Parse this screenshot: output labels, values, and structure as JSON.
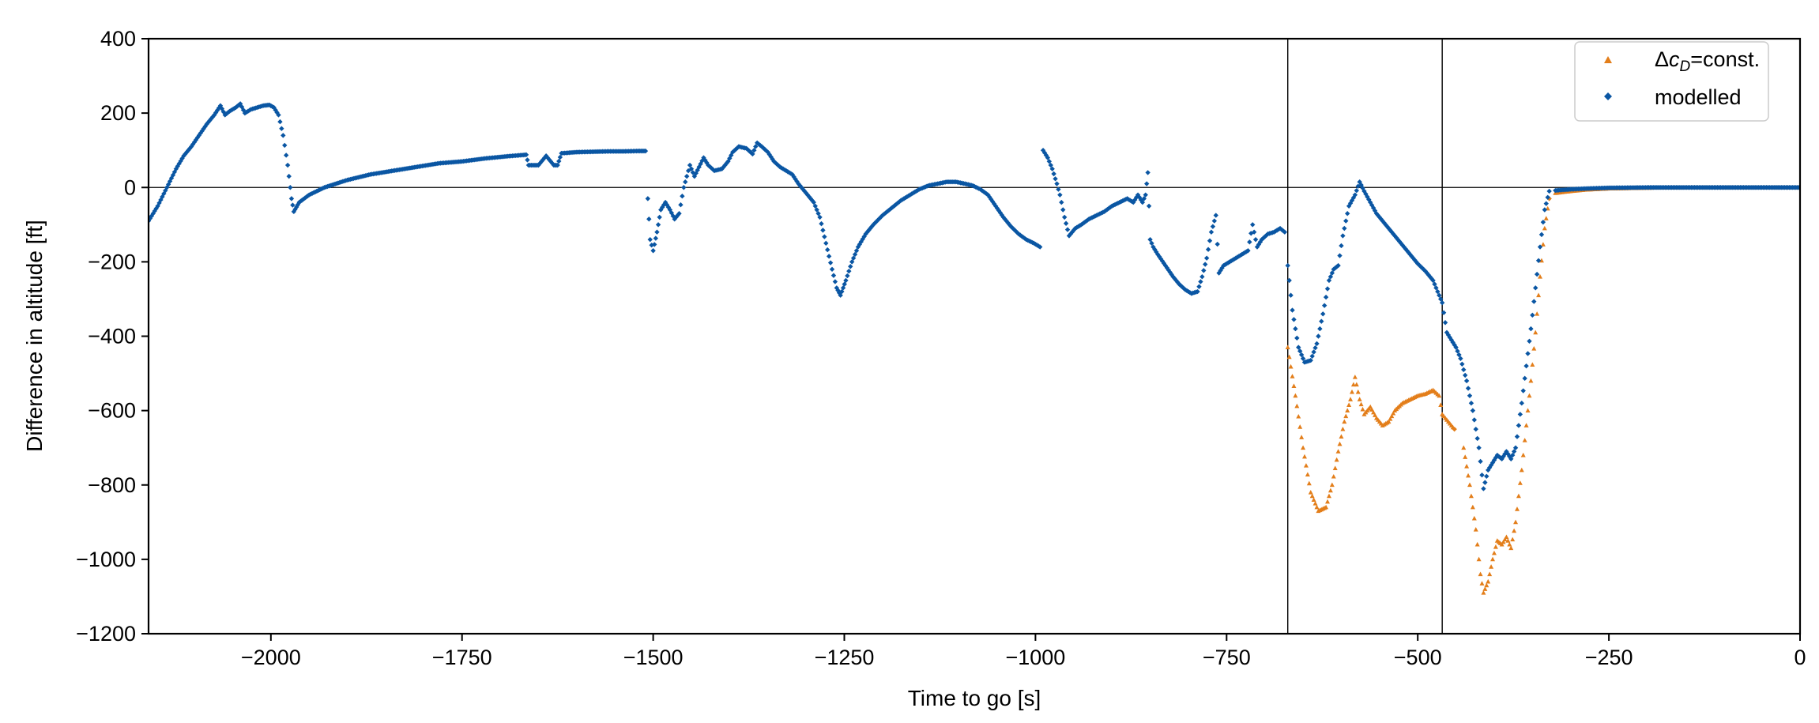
{
  "chart_data": {
    "type": "scatter",
    "xlabel": "Time to go [s]",
    "ylabel": "Difference in altitude [ft]",
    "xlim": [
      -2160,
      0
    ],
    "ylim": [
      -1200,
      400
    ],
    "xticks": [
      -2000,
      -1750,
      -1500,
      -1250,
      -1000,
      -750,
      -500,
      -250,
      0
    ],
    "yticks": [
      400,
      200,
      0,
      -200,
      -400,
      -600,
      -800,
      -1000,
      -1200
    ],
    "xtick_labels": [
      "−2000",
      "−1750",
      "−1500",
      "−1250",
      "−1000",
      "−750",
      "−500",
      "−250",
      "0"
    ],
    "ytick_labels": [
      "400",
      "200",
      "0",
      "−200",
      "−400",
      "−600",
      "−800",
      "−1000",
      "−1200"
    ],
    "reference_lines": {
      "horizontal_y": 0,
      "vertical_x": [
        -670,
        -468
      ]
    },
    "grid": false,
    "legend": {
      "position": "top-right",
      "entries": [
        {
          "label_prefix": "Δ",
          "label_math": "c",
          "label_sub": "D",
          "label_suffix": "=const.",
          "series_index": 0
        },
        {
          "label": "modelled",
          "series_index": 1
        }
      ]
    },
    "series": [
      {
        "name": "ΔcD=const.",
        "color": "#e37e1a",
        "marker": "triangle",
        "segments": [
          [
            [
              -670,
              -430
            ],
            [
              -660,
              -560
            ],
            [
              -650,
              -700
            ],
            [
              -640,
              -820
            ],
            [
              -630,
              -870
            ],
            [
              -620,
              -860
            ],
            [
              -612,
              -800
            ],
            [
              -604,
              -710
            ],
            [
              -596,
              -630
            ],
            [
              -588,
              -570
            ],
            [
              -582,
              -510
            ],
            [
              -576,
              -570
            ],
            [
              -570,
              -610
            ],
            [
              -562,
              -590
            ],
            [
              -554,
              -620
            ],
            [
              -546,
              -640
            ],
            [
              -538,
              -630
            ],
            [
              -530,
              -600
            ],
            [
              -520,
              -580
            ],
            [
              -510,
              -570
            ],
            [
              -500,
              -560
            ],
            [
              -490,
              -555
            ],
            [
              -480,
              -545
            ],
            [
              -472,
              -560
            ],
            [
              -468,
              -610
            ],
            [
              -460,
              -630
            ],
            [
              -452,
              -650
            ]
          ],
          [
            [
              -440,
              -700
            ],
            [
              -432,
              -800
            ],
            [
              -424,
              -920
            ],
            [
              -418,
              -1040
            ],
            [
              -414,
              -1090
            ],
            [
              -408,
              -1060
            ],
            [
              -402,
              -1000
            ],
            [
              -396,
              -950
            ],
            [
              -390,
              -960
            ],
            [
              -384,
              -940
            ],
            [
              -378,
              -970
            ],
            [
              -372,
              -900
            ],
            [
              -364,
              -760
            ],
            [
              -358,
              -640
            ],
            [
              -352,
              -520
            ],
            [
              -346,
              -390
            ],
            [
              -340,
              -240
            ],
            [
              -334,
              -110
            ],
            [
              -328,
              -30
            ]
          ],
          [
            [
              -320,
              -15
            ],
            [
              -300,
              -10
            ],
            [
              -280,
              -6
            ],
            [
              -250,
              -3
            ],
            [
              -200,
              -1
            ],
            [
              -150,
              0
            ],
            [
              -100,
              0
            ],
            [
              -50,
              0
            ],
            [
              0,
              0
            ]
          ]
        ]
      },
      {
        "name": "modelled",
        "color": "#0a56a3",
        "marker": "diamond",
        "segments": [
          [
            [
              -2160,
              -90
            ],
            [
              -2148,
              -50
            ],
            [
              -2136,
              0
            ],
            [
              -2124,
              50
            ],
            [
              -2114,
              85
            ],
            [
              -2104,
              110
            ],
            [
              -2094,
              140
            ],
            [
              -2084,
              170
            ],
            [
              -2074,
              195
            ],
            [
              -2066,
              220
            ],
            [
              -2060,
              195
            ],
            [
              -2054,
              205
            ],
            [
              -2046,
              215
            ],
            [
              -2040,
              225
            ],
            [
              -2034,
              200
            ],
            [
              -2026,
              210
            ],
            [
              -2018,
              215
            ],
            [
              -2010,
              220
            ],
            [
              -2002,
              222
            ],
            [
              -1996,
              215
            ],
            [
              -1990,
              195
            ],
            [
              -1984,
              140
            ],
            [
              -1978,
              60
            ],
            [
              -1973,
              -30
            ],
            [
              -1970,
              -65
            ],
            [
              -1963,
              -40
            ],
            [
              -1950,
              -20
            ],
            [
              -1930,
              0
            ],
            [
              -1900,
              20
            ],
            [
              -1870,
              35
            ],
            [
              -1840,
              45
            ],
            [
              -1810,
              55
            ],
            [
              -1780,
              65
            ],
            [
              -1750,
              70
            ],
            [
              -1720,
              78
            ],
            [
              -1690,
              84
            ],
            [
              -1666,
              88
            ],
            [
              -1663,
              60
            ],
            [
              -1650,
              60
            ],
            [
              -1640,
              85
            ],
            [
              -1630,
              60
            ],
            [
              -1625,
              60
            ],
            [
              -1620,
              92
            ],
            [
              -1600,
              95
            ],
            [
              -1580,
              96
            ],
            [
              -1560,
              97
            ],
            [
              -1540,
              97
            ],
            [
              -1520,
              98
            ],
            [
              -1510,
              98
            ]
          ],
          [
            [
              -1507,
              -30
            ],
            [
              -1504,
              -140
            ],
            [
              -1500,
              -170
            ],
            [
              -1495,
              -120
            ],
            [
              -1490,
              -60
            ],
            [
              -1484,
              -40
            ],
            [
              -1478,
              -60
            ],
            [
              -1472,
              -85
            ],
            [
              -1466,
              -70
            ],
            [
              -1460,
              0
            ],
            [
              -1452,
              60
            ],
            [
              -1446,
              30
            ],
            [
              -1440,
              55
            ],
            [
              -1434,
              80
            ],
            [
              -1428,
              60
            ],
            [
              -1420,
              45
            ],
            [
              -1410,
              50
            ],
            [
              -1402,
              70
            ],
            [
              -1396,
              95
            ],
            [
              -1388,
              110
            ],
            [
              -1378,
              105
            ],
            [
              -1370,
              90
            ],
            [
              -1364,
              120
            ],
            [
              -1358,
              110
            ],
            [
              -1350,
              95
            ],
            [
              -1342,
              70
            ],
            [
              -1334,
              55
            ],
            [
              -1326,
              45
            ],
            [
              -1318,
              35
            ],
            [
              -1310,
              10
            ],
            [
              -1300,
              -15
            ],
            [
              -1290,
              -40
            ],
            [
              -1282,
              -80
            ],
            [
              -1274,
              -150
            ],
            [
              -1266,
              -220
            ],
            [
              -1260,
              -270
            ],
            [
              -1255,
              -290
            ],
            [
              -1248,
              -250
            ],
            [
              -1240,
              -200
            ],
            [
              -1232,
              -160
            ],
            [
              -1222,
              -125
            ],
            [
              -1212,
              -100
            ],
            [
              -1200,
              -75
            ],
            [
              -1188,
              -55
            ],
            [
              -1176,
              -35
            ],
            [
              -1164,
              -20
            ],
            [
              -1152,
              -5
            ],
            [
              -1140,
              5
            ],
            [
              -1128,
              10
            ],
            [
              -1116,
              15
            ],
            [
              -1104,
              15
            ],
            [
              -1092,
              10
            ],
            [
              -1082,
              5
            ],
            [
              -1072,
              -5
            ],
            [
              -1062,
              -20
            ],
            [
              -1052,
              -50
            ],
            [
              -1042,
              -80
            ],
            [
              -1032,
              -105
            ],
            [
              -1022,
              -125
            ],
            [
              -1012,
              -140
            ],
            [
              -1002,
              -150
            ],
            [
              -994,
              -160
            ]
          ],
          [
            [
              -990,
              100
            ],
            [
              -984,
              80
            ],
            [
              -978,
              50
            ],
            [
              -972,
              10
            ],
            [
              -968,
              -20
            ],
            [
              -962,
              -80
            ],
            [
              -956,
              -130
            ],
            [
              -948,
              -110
            ],
            [
              -940,
              -100
            ],
            [
              -930,
              -85
            ],
            [
              -920,
              -75
            ],
            [
              -910,
              -65
            ],
            [
              -900,
              -50
            ],
            [
              -890,
              -40
            ],
            [
              -880,
              -30
            ],
            [
              -872,
              -40
            ],
            [
              -866,
              -20
            ],
            [
              -860,
              -40
            ],
            [
              -856,
              -20
            ],
            [
              -853,
              40
            ],
            [
              -850,
              -140
            ],
            [
              -846,
              -160
            ],
            [
              -840,
              -180
            ],
            [
              -830,
              -210
            ],
            [
              -820,
              -240
            ],
            [
              -812,
              -260
            ],
            [
              -804,
              -275
            ],
            [
              -796,
              -285
            ],
            [
              -788,
              -280
            ],
            [
              -782,
              -240
            ],
            [
              -776,
              -190
            ],
            [
              -770,
              -120
            ],
            [
              -764,
              -75
            ],
            [
              -760,
              -230
            ],
            [
              -754,
              -210
            ],
            [
              -746,
              -200
            ],
            [
              -738,
              -190
            ],
            [
              -730,
              -180
            ],
            [
              -722,
              -170
            ],
            [
              -716,
              -100
            ],
            [
              -710,
              -160
            ],
            [
              -704,
              -140
            ],
            [
              -696,
              -125
            ],
            [
              -688,
              -120
            ],
            [
              -680,
              -110
            ],
            [
              -674,
              -120
            ]
          ],
          [
            [
              -670,
              -210
            ],
            [
              -664,
              -330
            ],
            [
              -656,
              -430
            ],
            [
              -648,
              -470
            ],
            [
              -640,
              -465
            ],
            [
              -632,
              -420
            ],
            [
              -624,
              -340
            ],
            [
              -616,
              -250
            ],
            [
              -610,
              -220
            ],
            [
              -604,
              -210
            ],
            [
              -598,
              -130
            ],
            [
              -590,
              -50
            ],
            [
              -582,
              -20
            ],
            [
              -576,
              15
            ],
            [
              -570,
              -10
            ],
            [
              -562,
              -40
            ],
            [
              -554,
              -70
            ],
            [
              -546,
              -90
            ],
            [
              -538,
              -110
            ],
            [
              -530,
              -130
            ],
            [
              -520,
              -155
            ],
            [
              -510,
              -180
            ],
            [
              -500,
              -205
            ],
            [
              -490,
              -225
            ],
            [
              -480,
              -250
            ],
            [
              -472,
              -290
            ],
            [
              -468,
              -310
            ],
            [
              -462,
              -390
            ],
            [
              -456,
              -410
            ],
            [
              -450,
              -430
            ],
            [
              -444,
              -460
            ],
            [
              -436,
              -520
            ],
            [
              -428,
              -600
            ],
            [
              -420,
              -700
            ],
            [
              -414,
              -810
            ],
            [
              -408,
              -760
            ],
            [
              -402,
              -740
            ],
            [
              -396,
              -720
            ],
            [
              -390,
              -730
            ],
            [
              -384,
              -710
            ],
            [
              -378,
              -730
            ],
            [
              -372,
              -700
            ],
            [
              -364,
              -580
            ],
            [
              -358,
              -480
            ],
            [
              -352,
              -380
            ],
            [
              -346,
              -270
            ],
            [
              -340,
              -160
            ],
            [
              -334,
              -60
            ],
            [
              -328,
              -10
            ]
          ],
          [
            [
              -320,
              -8
            ],
            [
              -300,
              -5
            ],
            [
              -280,
              -3
            ],
            [
              -250,
              -1
            ],
            [
              -200,
              0
            ],
            [
              -150,
              0
            ],
            [
              -100,
              0
            ],
            [
              -50,
              0
            ],
            [
              0,
              0
            ]
          ]
        ]
      }
    ]
  }
}
